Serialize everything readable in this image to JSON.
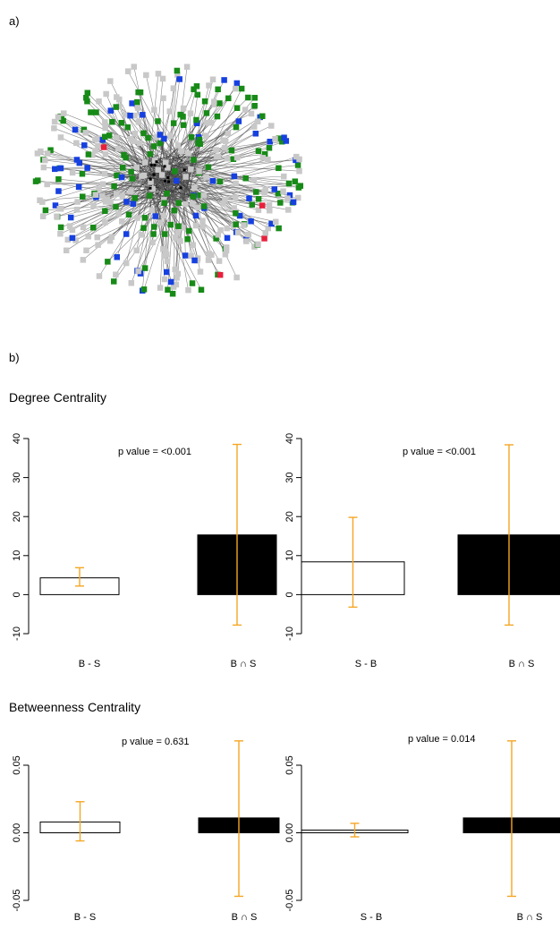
{
  "panel_a": {
    "label": "a)"
  },
  "panel_b": {
    "label": "b)"
  },
  "network": {
    "colors": {
      "gray": "#c8c8c8",
      "green": "#178a17",
      "blue": "#1640e0",
      "red": "#e8203c",
      "black": "#000000",
      "edge_outer": "#555555",
      "edge_inner": "#1c1c1c"
    }
  },
  "colors": {
    "error_bar": "#f5a623",
    "bar_fill": "#000000",
    "bar_outline": "#000000",
    "open_fill": "#ffffff"
  },
  "sections": {
    "degree": {
      "title": "Degree Centrality"
    },
    "betweenness": {
      "title": "Betweenness Centrality"
    }
  },
  "chart_data": [
    {
      "type": "bar",
      "title": "",
      "annotation": "p value = <0.001",
      "categories": [
        "B - S",
        "B ∩ S"
      ],
      "values": [
        4.3,
        15.3
      ],
      "error_low": [
        2.2,
        -7.8
      ],
      "error_high": [
        6.9,
        38.5
      ],
      "ylim": [
        -10,
        40
      ],
      "yticks": [
        -10,
        0,
        10,
        20,
        30,
        40
      ],
      "ytick_labels": [
        "-10",
        "0",
        "10",
        "20",
        "30",
        "40"
      ]
    },
    {
      "type": "bar",
      "title": "",
      "annotation": "p value = <0.001",
      "categories": [
        "S - B",
        "B ∩ S"
      ],
      "values": [
        8.4,
        15.3
      ],
      "error_low": [
        -3.2,
        -7.8
      ],
      "error_high": [
        19.8,
        38.4
      ],
      "ylim": [
        -10,
        40
      ],
      "yticks": [
        -10,
        0,
        10,
        20,
        30,
        40
      ],
      "ytick_labels": [
        "-10",
        "0",
        "10",
        "20",
        "30",
        "40"
      ]
    },
    {
      "type": "bar",
      "title": "",
      "annotation": "p value = 0.631",
      "categories": [
        "B - S",
        "B ∩ S"
      ],
      "values": [
        0.008,
        0.011
      ],
      "error_low": [
        -0.006,
        -0.047
      ],
      "error_high": [
        0.023,
        0.068
      ],
      "ylim": [
        -0.05,
        0.05
      ],
      "yticks": [
        -0.05,
        0,
        0.05
      ],
      "ytick_labels": [
        "-0.05",
        "0.00",
        "0.05"
      ]
    },
    {
      "type": "bar",
      "title": "",
      "annotation": "p value = 0.014",
      "categories": [
        "S - B",
        "B ∩ S"
      ],
      "values": [
        0.002,
        0.011
      ],
      "error_low": [
        -0.003,
        -0.047
      ],
      "error_high": [
        0.007,
        0.068
      ],
      "ylim": [
        -0.05,
        0.05
      ],
      "yticks": [
        -0.05,
        0,
        0.05
      ],
      "ytick_labels": [
        "-0.05",
        "0.00",
        "0.05"
      ]
    }
  ]
}
